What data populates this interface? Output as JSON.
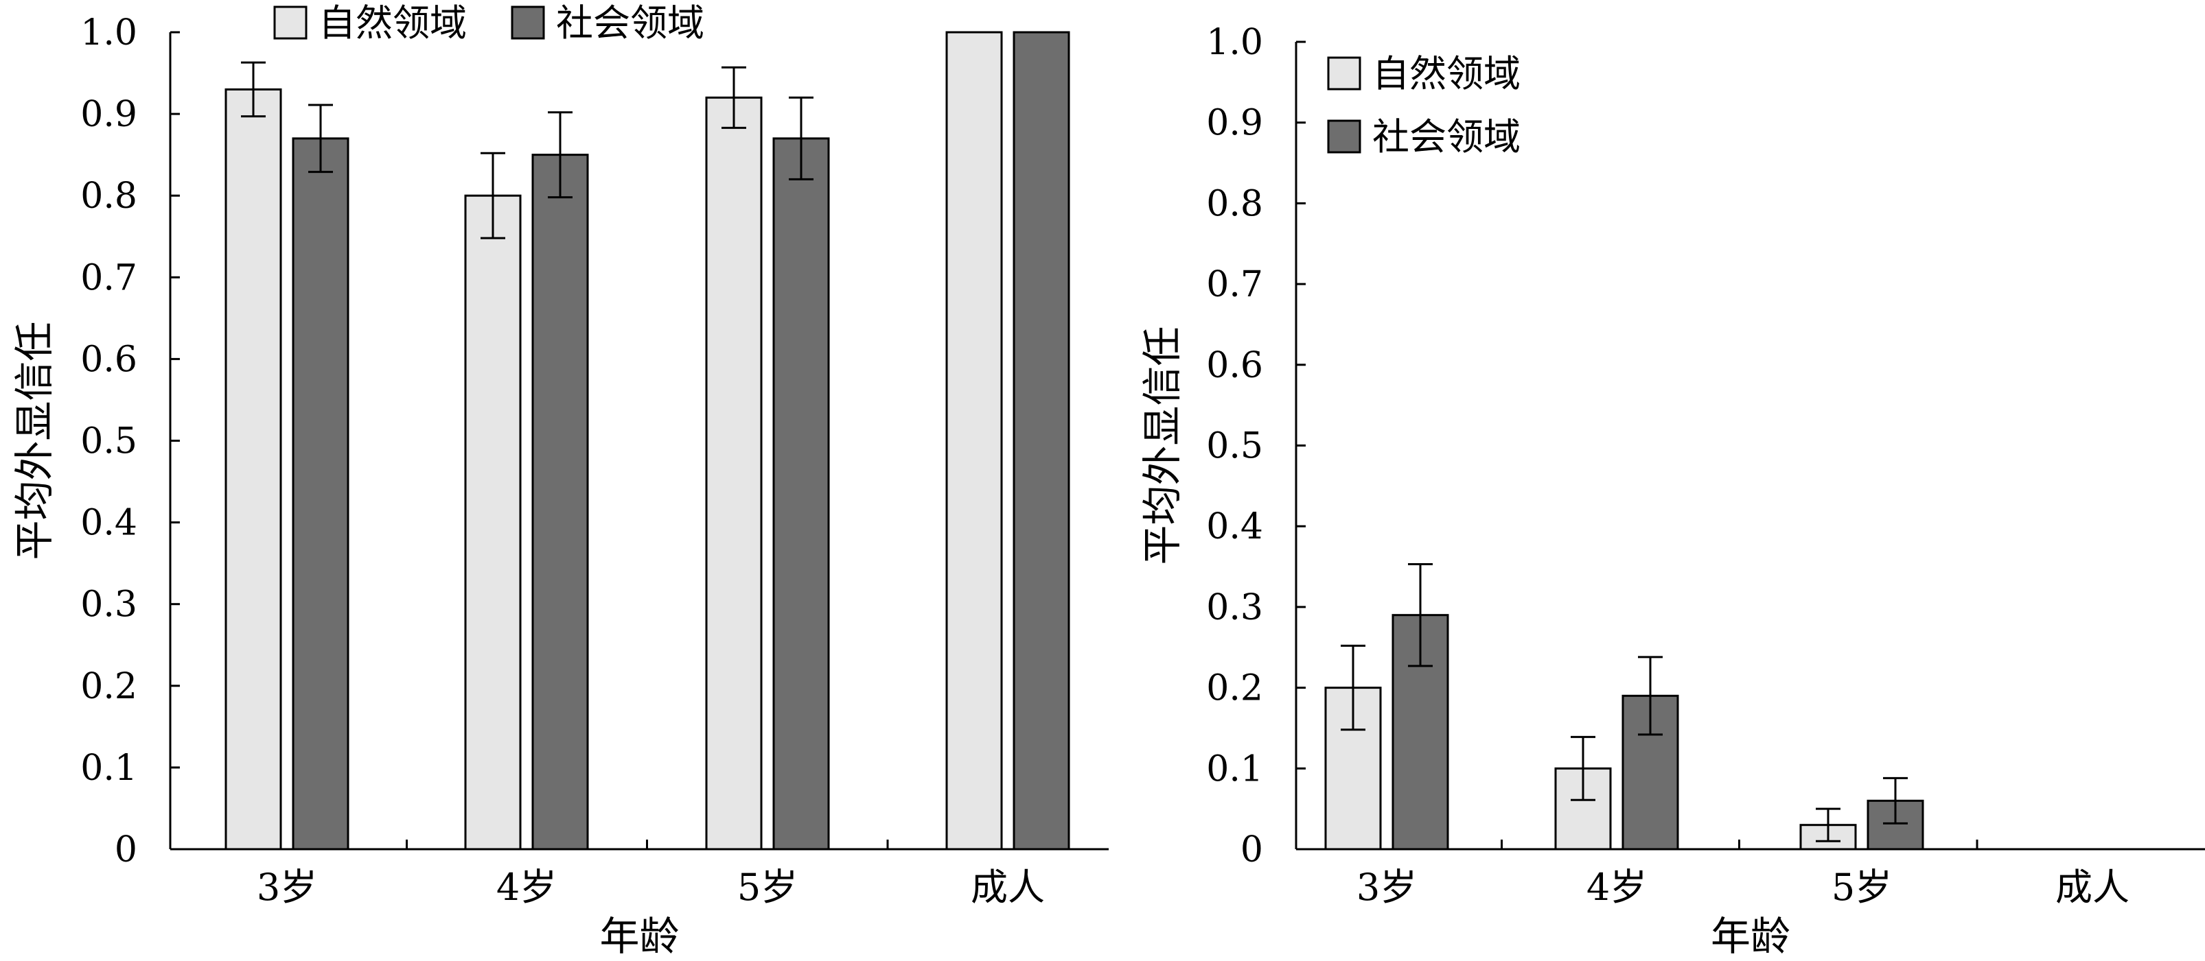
{
  "chart_data": [
    {
      "type": "bar",
      "categories": [
        "3岁",
        "4岁",
        "5岁",
        "成人"
      ],
      "xlabel": "年龄",
      "ylabel": "平均外显信任",
      "ylim": [
        0,
        1.0
      ],
      "yticks": [
        "0",
        "0.1",
        "0.2",
        "0.3",
        "0.4",
        "0.5",
        "0.6",
        "0.7",
        "0.8",
        "0.9",
        "1.0"
      ],
      "legend_position": "top",
      "series": [
        {
          "name": "自然领域",
          "color": "#e6e6e6",
          "values": [
            0.93,
            0.8,
            0.92,
            1.0
          ],
          "errors": [
            0.033,
            0.052,
            0.037,
            null
          ]
        },
        {
          "name": "社会领域",
          "color": "#6e6e6e",
          "values": [
            0.87,
            0.85,
            0.87,
            1.0
          ],
          "errors": [
            0.041,
            0.052,
            0.05,
            null
          ]
        }
      ]
    },
    {
      "type": "bar",
      "categories": [
        "3岁",
        "4岁",
        "5岁",
        "成人"
      ],
      "xlabel": "年龄",
      "ylabel": "平均外显信任",
      "ylim": [
        0,
        1.0
      ],
      "yticks": [
        "0",
        "0.1",
        "0.2",
        "0.3",
        "0.4",
        "0.5",
        "0.6",
        "0.7",
        "0.8",
        "0.9",
        "1.0"
      ],
      "legend_position": "top-left",
      "series": [
        {
          "name": "自然领域",
          "color": "#e6e6e6",
          "values": [
            0.2,
            0.1,
            0.03,
            0
          ],
          "errors": [
            0.052,
            0.039,
            0.02,
            null
          ]
        },
        {
          "name": "社会领域",
          "color": "#6e6e6e",
          "values": [
            0.29,
            0.19,
            0.06,
            0
          ],
          "errors": [
            0.063,
            0.048,
            0.028,
            null
          ]
        }
      ]
    }
  ]
}
